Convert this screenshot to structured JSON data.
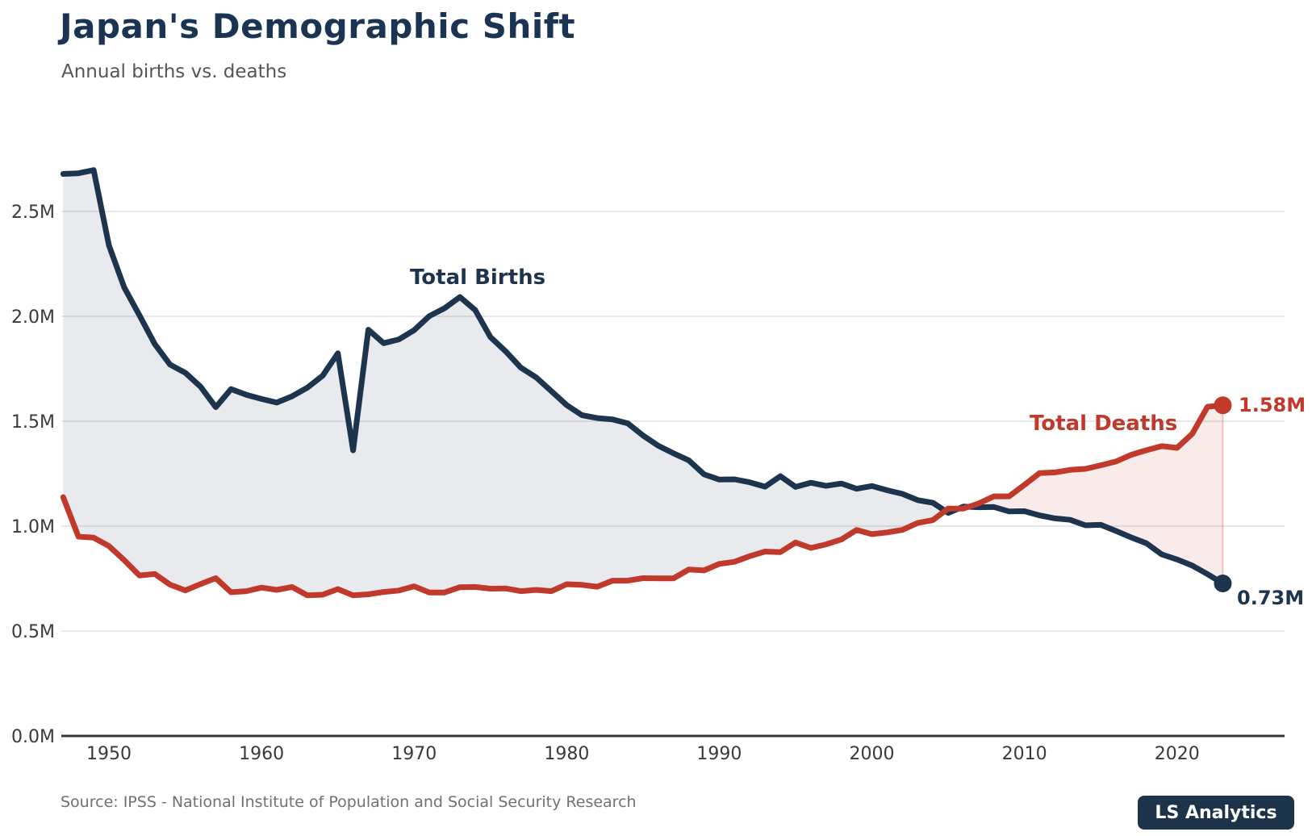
{
  "header": {
    "title": "Japan's Demographic Shift",
    "subtitle": "Annual births vs. deaths"
  },
  "footer": {
    "source": "Source: IPSS - National Institute of Population and Social Security Research",
    "brand": "LS Analytics"
  },
  "theme": {
    "navy": "#1d344f",
    "red": "#c0392b",
    "births_fill": "rgba(31,52,80,0.10)",
    "deaths_fill": "rgba(192,57,43,0.10)",
    "end_connector": "rgba(192,57,43,0.25)",
    "grid_color": "#e8e8e8",
    "axis_color": "#383838",
    "tick_color": "#3a3a3a"
  },
  "chart_data": {
    "type": "line",
    "title": "Japan's Demographic Shift",
    "subtitle": "Annual births vs. deaths",
    "unit": "millions of people per year",
    "grid": "horizontal",
    "legend_position": "inline-labels",
    "ylim": [
      0,
      2.78
    ],
    "x": [
      1947,
      1948,
      1949,
      1950,
      1951,
      1952,
      1953,
      1954,
      1955,
      1956,
      1957,
      1958,
      1959,
      1960,
      1961,
      1962,
      1963,
      1964,
      1965,
      1966,
      1967,
      1968,
      1969,
      1970,
      1971,
      1972,
      1973,
      1974,
      1975,
      1976,
      1977,
      1978,
      1979,
      1980,
      1981,
      1982,
      1983,
      1984,
      1985,
      1986,
      1987,
      1988,
      1989,
      1990,
      1991,
      1992,
      1993,
      1994,
      1995,
      1996,
      1997,
      1998,
      1999,
      2000,
      2001,
      2002,
      2003,
      2004,
      2005,
      2006,
      2007,
      2008,
      2009,
      2010,
      2011,
      2012,
      2013,
      2014,
      2015,
      2016,
      2017,
      2018,
      2019,
      2020,
      2021,
      2022,
      2023
    ],
    "series": [
      {
        "name": "Total Births",
        "values": [
          2.679,
          2.682,
          2.697,
          2.338,
          2.138,
          2.005,
          1.868,
          1.77,
          1.731,
          1.665,
          1.567,
          1.653,
          1.626,
          1.606,
          1.589,
          1.619,
          1.66,
          1.717,
          1.824,
          1.361,
          1.936,
          1.872,
          1.89,
          1.934,
          2.001,
          2.039,
          2.092,
          2.03,
          1.901,
          1.833,
          1.755,
          1.709,
          1.643,
          1.577,
          1.529,
          1.515,
          1.509,
          1.49,
          1.432,
          1.383,
          1.347,
          1.314,
          1.247,
          1.222,
          1.223,
          1.209,
          1.188,
          1.238,
          1.187,
          1.207,
          1.192,
          1.203,
          1.178,
          1.191,
          1.171,
          1.154,
          1.124,
          1.111,
          1.063,
          1.093,
          1.09,
          1.091,
          1.07,
          1.071,
          1.051,
          1.037,
          1.03,
          1.004,
          1.006,
          0.977,
          0.946,
          0.918,
          0.865,
          0.841,
          0.812,
          0.771,
          0.727
        ]
      },
      {
        "name": "Total Deaths",
        "values": [
          1.138,
          0.95,
          0.945,
          0.905,
          0.838,
          0.765,
          0.772,
          0.721,
          0.694,
          0.724,
          0.752,
          0.685,
          0.69,
          0.707,
          0.696,
          0.71,
          0.67,
          0.673,
          0.7,
          0.67,
          0.675,
          0.686,
          0.693,
          0.713,
          0.684,
          0.684,
          0.709,
          0.71,
          0.702,
          0.703,
          0.69,
          0.696,
          0.69,
          0.723,
          0.72,
          0.711,
          0.74,
          0.74,
          0.752,
          0.751,
          0.751,
          0.793,
          0.789,
          0.82,
          0.83,
          0.857,
          0.879,
          0.876,
          0.922,
          0.896,
          0.913,
          0.936,
          0.982,
          0.962,
          0.97,
          0.982,
          1.015,
          1.029,
          1.084,
          1.084,
          1.108,
          1.142,
          1.142,
          1.197,
          1.253,
          1.256,
          1.268,
          1.273,
          1.29,
          1.308,
          1.34,
          1.362,
          1.381,
          1.373,
          1.44,
          1.569,
          1.576
        ]
      }
    ],
    "y_ticks": [
      {
        "value": 0.0,
        "label": "0.0M"
      },
      {
        "value": 0.5,
        "label": "0.5M"
      },
      {
        "value": 1.0,
        "label": "1.0M"
      },
      {
        "value": 1.5,
        "label": "1.5M"
      },
      {
        "value": 2.0,
        "label": "2.0M"
      },
      {
        "value": 2.5,
        "label": "2.5M"
      }
    ],
    "x_ticks": [
      {
        "value": 1950,
        "label": "1950"
      },
      {
        "value": 1960,
        "label": "1960"
      },
      {
        "value": 1970,
        "label": "1970"
      },
      {
        "value": 1980,
        "label": "1980"
      },
      {
        "value": 1990,
        "label": "1990"
      },
      {
        "value": 2000,
        "label": "2000"
      },
      {
        "value": 2010,
        "label": "2010"
      },
      {
        "value": 2020,
        "label": "2020"
      }
    ],
    "annotations": {
      "births_series_label": "Total Births",
      "deaths_series_label": "Total Deaths",
      "births_end_value": "0.73M",
      "deaths_end_value": "1.58M"
    }
  }
}
